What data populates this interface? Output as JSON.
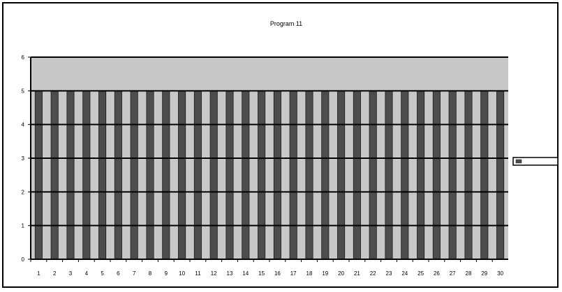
{
  "chart_data": {
    "type": "bar",
    "title": "Program 11",
    "xlabel": "",
    "ylabel": "",
    "categories": [
      "1",
      "2",
      "3",
      "4",
      "5",
      "6",
      "7",
      "8",
      "9",
      "10",
      "11",
      "12",
      "13",
      "14",
      "15",
      "16",
      "17",
      "18",
      "19",
      "20",
      "21",
      "22",
      "23",
      "24",
      "25",
      "26",
      "27",
      "28",
      "29",
      "30"
    ],
    "series": [
      {
        "values": [
          5,
          5,
          5,
          5,
          5,
          5,
          5,
          5,
          5,
          5,
          5,
          5,
          5,
          5,
          5,
          5,
          5,
          5,
          5,
          5,
          5,
          5,
          5,
          5,
          5,
          5,
          5,
          5,
          5,
          5
        ]
      }
    ],
    "ylim": [
      0,
      6
    ],
    "yticks": [
      0,
      1,
      2,
      3,
      4,
      5,
      6
    ],
    "grid": true,
    "legend_position": "right",
    "colors": {
      "plot_area": "#c8c8c8",
      "bar": "#4d4d4d",
      "gridline": "#000000",
      "frame": "#000000"
    }
  }
}
